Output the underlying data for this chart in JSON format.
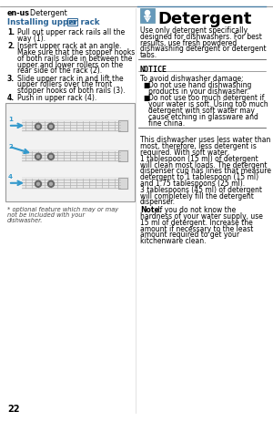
{
  "bg_color": "#ffffff",
  "header_bold": "en-us",
  "header_normal": "  Detergent",
  "left_section": {
    "title_text": "Installing upper rack ",
    "title_box": "21",
    "title_color": "#2a6496",
    "steps": [
      [
        "1.",
        "Pull out upper rack rails all the\nway (1)."
      ],
      [
        "2.",
        "Insert upper rack at an angle.\nMake sure that the stopper hooks\nof both rails slide in between the\nupper and lower rollers on the\nrear side of the rack (2)."
      ],
      [
        "3.",
        "Slide upper rack in and lift the\nupper rollers over the front\nstopper hooks of both rails (3)."
      ],
      [
        "4.",
        "Push in upper rack (4)."
      ]
    ],
    "footnote": "* optional feature which may or may\nnot be included with your\ndishwasher."
  },
  "right_section": {
    "icon_color": "#5a8fa8",
    "title": "Detergent",
    "title_fontsize": 13,
    "intro": "Use only detergent specifically\ndesigned for dishwashers. For best\nresults, use fresh powdered\ndishwashing detergent or detergent\ntabs.",
    "notice_title": "NOTICE",
    "notice_intro": "To avoid dishwasher damage:",
    "notice_bullets": [
      "Do not use hand dishwashing\nproducts in your dishwasher.",
      "Do not use too much detergent if\nyour water is soft. Using too much\ndetergent with soft water may\ncause etching in glassware and\nfine china."
    ],
    "body": "This dishwasher uses less water than\nmost, therefore, less detergent is\nrequired. With soft water,\n1 tablespoon (15 ml) of detergent\nwill clean most loads. The detergent\ndispenser cup has lines that measure\ndetergent to 1 tablespoon (15 ml)\nand 1.75 tablespoons (25 ml).\n3 tablespoons (45 ml) of detergent\nwill completely fill the detergent\ndispenser.",
    "note_bold": "Note:",
    "note_text": " If you do not know the\nhardness of your water supply, use\n15 ml of detergent. Increase the\namount if necessary to the least\namount required to get your\nkitchenware clean."
  },
  "page_number": "22",
  "header_line_color": "#4a7fa5",
  "divider_color": "#4a7fa5"
}
